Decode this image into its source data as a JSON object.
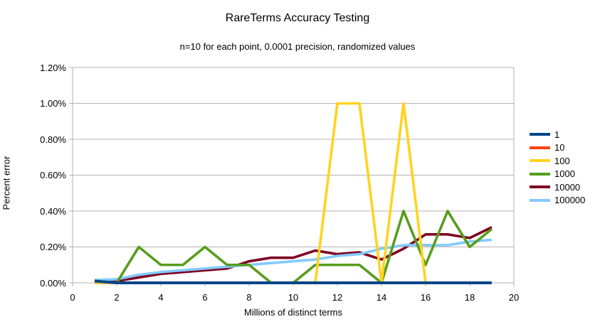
{
  "chart_data": {
    "type": "line",
    "title": "RareTerms Accuracy Testing",
    "subtitle": "n=10 for each point, 0.0001 precision, randomized values",
    "xlabel": "Millions of distinct terms",
    "ylabel": "Percent error",
    "xlim": [
      0,
      20
    ],
    "ylim": [
      0,
      1.2
    ],
    "y_unit": "percent",
    "grid": "horizontal-only",
    "legend_position": "right",
    "x_ticks": [
      "0",
      "2",
      "4",
      "6",
      "8",
      "10",
      "12",
      "14",
      "16",
      "18",
      "20"
    ],
    "y_ticks": [
      "0.00%",
      "0.20%",
      "0.40%",
      "0.60%",
      "0.80%",
      "1.00%",
      "1.20%"
    ],
    "x": [
      1,
      2,
      3,
      4,
      5,
      6,
      7,
      8,
      9,
      10,
      11,
      12,
      13,
      14,
      15,
      16,
      17,
      18,
      19
    ],
    "series": [
      {
        "name": "1",
        "color": "#004586",
        "values": [
          0.01,
          0.0,
          0.0,
          0.0,
          0.0,
          0.0,
          0.0,
          0.0,
          0.0,
          0.0,
          0.0,
          0.0,
          0.0,
          0.0,
          0.0,
          0.0,
          0.0,
          0.0,
          0.0
        ]
      },
      {
        "name": "10",
        "color": "#ff420e",
        "values": [
          0.0,
          0.0,
          0.0,
          0.0,
          0.0,
          0.0,
          0.0,
          0.0,
          0.0,
          0.0,
          0.0,
          0.0,
          0.0,
          0.0,
          0.0,
          0.0,
          0.0,
          0.0,
          0.0
        ]
      },
      {
        "name": "100",
        "color": "#ffd320",
        "values": [
          0.0,
          0.0,
          0.0,
          0.0,
          0.0,
          0.0,
          0.0,
          0.0,
          0.0,
          0.0,
          0.0,
          1.0,
          1.0,
          0.0,
          1.0,
          0.0,
          0.0,
          0.0,
          0.0
        ]
      },
      {
        "name": "1000",
        "color": "#579d1c",
        "values": [
          0.01,
          0.0,
          0.2,
          0.1,
          0.1,
          0.2,
          0.1,
          0.1,
          0.0,
          0.0,
          0.1,
          0.1,
          0.1,
          0.0,
          0.4,
          0.1,
          0.4,
          0.2,
          0.3
        ]
      },
      {
        "name": "10000",
        "color": "#7e0021",
        "values": [
          0.01,
          0.01,
          0.03,
          0.05,
          0.06,
          0.07,
          0.08,
          0.12,
          0.14,
          0.14,
          0.18,
          0.16,
          0.17,
          0.13,
          0.19,
          0.27,
          0.27,
          0.25,
          0.31
        ]
      },
      {
        "name": "100000",
        "color": "#83caff",
        "values": [
          0.015,
          0.02,
          0.045,
          0.06,
          0.07,
          0.08,
          0.09,
          0.1,
          0.11,
          0.12,
          0.13,
          0.15,
          0.16,
          0.19,
          0.21,
          0.21,
          0.21,
          0.23,
          0.24
        ]
      }
    ],
    "draw_order": [
      "10",
      "10000",
      "100000",
      "1000",
      "100",
      "1"
    ],
    "axis_color": "#b3b3b3",
    "gridline_color": "#b3b3b3"
  }
}
